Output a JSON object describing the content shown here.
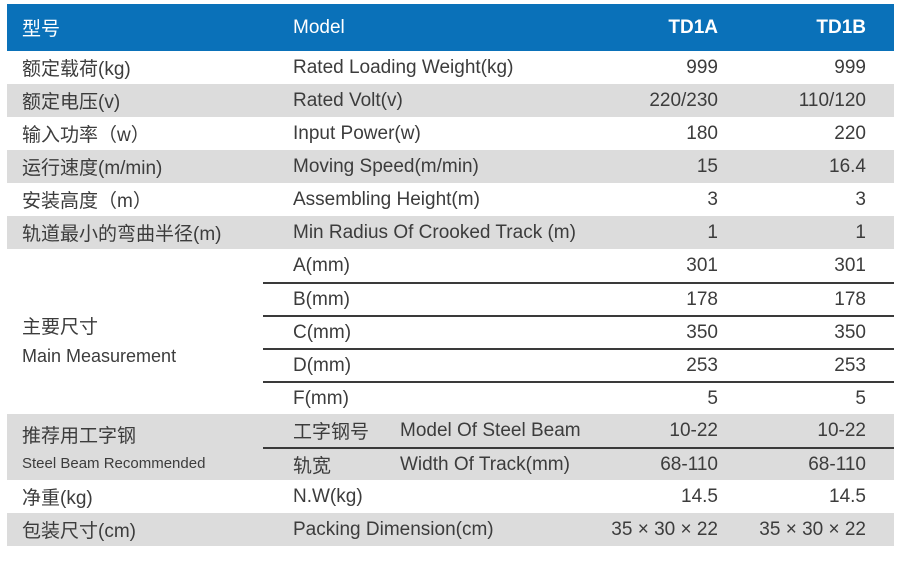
{
  "colors": {
    "header_bg": "#0a71b9",
    "header_text": "#ffffff",
    "stripe": "#dcdcdc",
    "body_text": "#3c3c3c",
    "divider": "#3a3a3a"
  },
  "header": {
    "col_cn": "型号",
    "col_en": "Model",
    "col_a": "TD1A",
    "col_b": "TD1B"
  },
  "rows": [
    {
      "cn": "额定载荷(kg)",
      "en": "Rated Loading Weight(kg)",
      "a": "999",
      "b": "999"
    },
    {
      "cn": "额定电压(v)",
      "en": "Rated Volt(v)",
      "a": "220/230",
      "b": "110/120"
    },
    {
      "cn": "输入功率（w）",
      "en": "Input Power(w)",
      "a": "180",
      "b": "220"
    },
    {
      "cn": "运行速度(m/min)",
      "en": "Moving Speed(m/min)",
      "a": "15",
      "b": "16.4"
    },
    {
      "cn": "安装高度（m）",
      "en": "Assembling Height(m)",
      "a": "3",
      "b": "3"
    },
    {
      "cn": "轨道最小的弯曲半径(m)",
      "en": "Min Radius Of Crooked Track (m)",
      "a": "1",
      "b": "1"
    }
  ],
  "main_measurement": {
    "label_cn": "主要尺寸",
    "label_en": "Main Measurement",
    "sub_rows": [
      {
        "en": "A(mm)",
        "a": "301",
        "b": "301"
      },
      {
        "en": "B(mm)",
        "a": "178",
        "b": "178"
      },
      {
        "en": "C(mm)",
        "a": "350",
        "b": "350"
      },
      {
        "en": "D(mm)",
        "a": "253",
        "b": "253"
      },
      {
        "en": "F(mm)",
        "a": "5",
        "b": "5"
      }
    ]
  },
  "steel_beam": {
    "label_cn": "推荐用工字钢",
    "label_en": "Steel Beam Recommended",
    "sub_rows": [
      {
        "cn": "工字钢号",
        "en": "Model Of Steel Beam",
        "a": "10-22",
        "b": "10-22"
      },
      {
        "cn": "轨宽",
        "en": "Width Of Track(mm)",
        "a": "68-110",
        "b": "68-110"
      }
    ]
  },
  "bottom_rows": [
    {
      "cn": "净重(kg)",
      "en": "N.W(kg)",
      "a": "14.5",
      "b": "14.5"
    },
    {
      "cn": "包装尺寸(cm)",
      "en": "Packing Dimension(cm)",
      "a": "35 × 30 × 22",
      "b": "35 × 30 × 22"
    }
  ]
}
